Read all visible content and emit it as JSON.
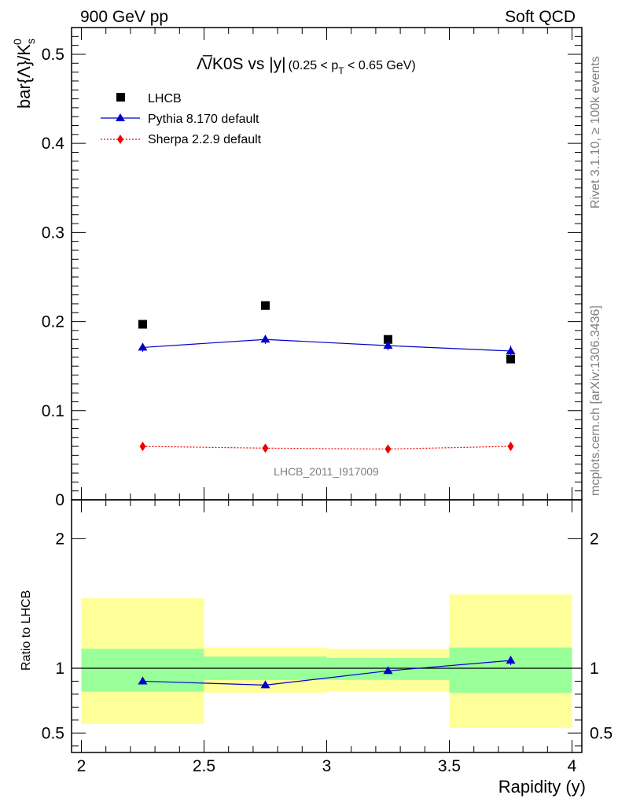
{
  "header": {
    "left": "900 GeV pp",
    "right": "Soft QCD"
  },
  "side_labels": {
    "rivet": "Rivet 3.1.10, ≥ 100k events",
    "mcplots": "mcplots.cern.ch [arXiv:1306.3436]"
  },
  "main_plot": {
    "title_main": "Λ̅/K0S vs |y|",
    "title_cut": "(0.25 < p",
    "title_cut_sub": "T",
    "title_cut_end": " < 0.65 GeV)",
    "ylabel": "bar{Λ}/K",
    "ylabel_sub": "s",
    "ylabel_sup": "0",
    "watermark": "LHCB_2011_I917009"
  },
  "ratio_plot": {
    "ylabel": "Ratio to LHCB",
    "xlabel": "Rapidity (y)"
  },
  "legend": [
    {
      "label": "LHCB",
      "marker": "square",
      "color": "#000000"
    },
    {
      "label": "Pythia 8.170 default",
      "marker": "triangle",
      "color": "#0000cc"
    },
    {
      "label": "Sherpa 2.2.9 default",
      "marker": "diamond",
      "color": "#ee0000"
    }
  ],
  "chart_data": [
    {
      "type": "scatter",
      "x": [
        2.25,
        2.75,
        3.25,
        3.75
      ],
      "xlim": [
        1.96,
        4.04
      ],
      "ylim": [
        0,
        0.53
      ],
      "y_ticks": [
        0,
        0.1,
        0.2,
        0.3,
        0.4,
        0.5
      ],
      "y_tick_labels": [
        "0",
        "0.1",
        "0.2",
        "0.3",
        "0.4",
        "0.5"
      ],
      "series": [
        {
          "name": "LHCB",
          "values": [
            0.197,
            0.218,
            0.18,
            0.158
          ],
          "color": "#000000",
          "marker": "square"
        },
        {
          "name": "Pythia 8.170 default",
          "values": [
            0.171,
            0.18,
            0.173,
            0.167
          ],
          "errors": [
            0.005,
            0.005,
            0.005,
            0.006
          ],
          "color": "#0000cc",
          "marker": "triangle",
          "line": "solid"
        },
        {
          "name": "Sherpa 2.2.9 default",
          "values": [
            0.06,
            0.058,
            0.057,
            0.06
          ],
          "color": "#ee0000",
          "marker": "diamond",
          "line": "dotted"
        }
      ]
    },
    {
      "type": "line",
      "x": [
        2.25,
        2.75,
        3.25,
        3.75
      ],
      "xlim": [
        1.96,
        4.04
      ],
      "ylim": [
        0.35,
        2.3
      ],
      "x_ticks": [
        2,
        2.5,
        3,
        3.5,
        4
      ],
      "x_tick_labels": [
        "2",
        "2.5",
        "3",
        "3.5",
        "4"
      ],
      "y_ticks": [
        0.5,
        1,
        2
      ],
      "y_tick_labels": [
        "0.5",
        "1",
        "2"
      ],
      "bins": [
        [
          2.0,
          2.5
        ],
        [
          2.5,
          3.0
        ],
        [
          3.0,
          3.5
        ],
        [
          3.5,
          4.0
        ]
      ],
      "band_outer": [
        [
          0.57,
          1.54
        ],
        [
          0.81,
          1.16
        ],
        [
          0.82,
          1.15
        ],
        [
          0.54,
          1.57
        ]
      ],
      "band_inner": [
        [
          0.82,
          1.15
        ],
        [
          0.91,
          1.09
        ],
        [
          0.91,
          1.08
        ],
        [
          0.81,
          1.16
        ]
      ],
      "band_outer_color": "#ffff99",
      "band_inner_color": "#99ff99",
      "reference": 1.0,
      "series": [
        {
          "name": "Pythia 8.170 default",
          "values": [
            0.9,
            0.87,
            0.98,
            1.06
          ],
          "errors": [
            0.025,
            0.025,
            0.025,
            0.035
          ],
          "color": "#0000cc",
          "marker": "triangle"
        }
      ]
    }
  ]
}
